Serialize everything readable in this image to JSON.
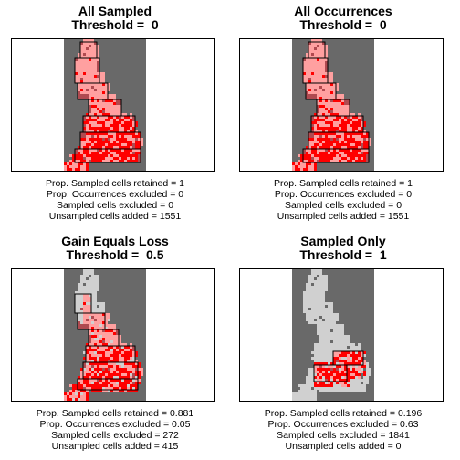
{
  "colors": {
    "band": "#696969",
    "sampled_kept": "#ffa0a0",
    "sampled_excluded": "#d0d0d0",
    "occurrence": "#ff0000",
    "unsampled_added": "#b04a50",
    "frame": "#000000"
  },
  "chart_data": [
    {
      "type": "heatmap",
      "title": "All Sampled",
      "threshold_label": "Threshold = ",
      "threshold": "0",
      "stats": [
        "Prop. Sampled cells retained = 1",
        "Prop. Occurrences excluded = 0",
        "Sampled cells excluded = 0",
        "Unsampled cells added = 1551"
      ]
    },
    {
      "type": "heatmap",
      "title": "All Occurrences",
      "threshold_label": "Threshold = ",
      "threshold": "0",
      "stats": [
        "Prop. Sampled cells retained = 1",
        "Prop. Occurrences excluded = 0",
        "Sampled cells excluded = 0",
        "Unsampled cells added = 1551"
      ]
    },
    {
      "type": "heatmap",
      "title": "Gain Equals Loss",
      "threshold_label": "Threshold = ",
      "threshold": "0.5",
      "stats": [
        "Prop. Sampled cells retained = 0.881",
        "Prop. Occurrences excluded = 0.05",
        "Sampled cells excluded = 272",
        "Unsampled cells added = 415"
      ]
    },
    {
      "type": "heatmap",
      "title": "Sampled Only",
      "threshold_label": "Threshold = ",
      "threshold": "1",
      "stats": [
        "Prop. Sampled cells retained = 0.196",
        "Prop. Occurrences excluded = 0.63",
        "Sampled cells excluded = 1841",
        "Unsampled cells added = 0"
      ]
    }
  ]
}
